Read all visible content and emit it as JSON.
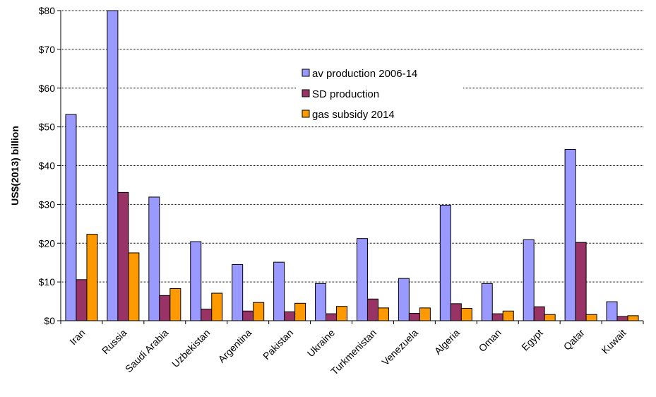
{
  "chart_data": {
    "type": "bar",
    "title": "",
    "xlabel": "",
    "ylabel": "US$(2013) billion",
    "ylim": [
      0,
      80
    ],
    "yticks": [
      0,
      10,
      20,
      30,
      40,
      50,
      60,
      70,
      80
    ],
    "ytick_labels": [
      "$0",
      "$10",
      "$20",
      "$30",
      "$40",
      "$50",
      "$60",
      "$70",
      "$80"
    ],
    "grid": true,
    "legend_position": "upper-center",
    "categories": [
      "Iran",
      "Russia",
      "Saudi Arabia",
      "Uzbekistan",
      "Argentina",
      "Pakistan",
      "Ukraine",
      "Turkmenistan",
      "Venezuela",
      "Algeria",
      "Oman",
      "Egypt",
      "Qatar",
      "Kuwait"
    ],
    "series": [
      {
        "name": "av production 2006-14",
        "color": "#9999FF",
        "values": [
          53.2,
          80.5,
          31.9,
          20.4,
          14.5,
          15.1,
          9.6,
          21.2,
          10.9,
          29.8,
          9.6,
          20.9,
          44.2,
          4.9
        ]
      },
      {
        "name": "SD production",
        "color": "#993366",
        "values": [
          10.6,
          33.1,
          6.5,
          3.0,
          2.5,
          2.3,
          1.8,
          5.6,
          1.9,
          4.4,
          1.8,
          3.6,
          20.2,
          1.1
        ]
      },
      {
        "name": "gas subsidy 2014",
        "color": "#FF9900",
        "values": [
          22.3,
          17.5,
          8.3,
          7.1,
          4.7,
          4.5,
          3.7,
          3.3,
          3.3,
          3.2,
          2.5,
          1.6,
          1.6,
          1.3
        ]
      }
    ]
  }
}
